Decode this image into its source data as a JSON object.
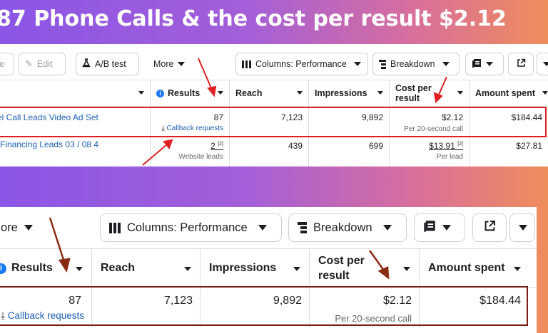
{
  "headline": "87 Phone Calls & the cost per result $2.12",
  "top_toolbar": {
    "partial_left": "e",
    "edit_label": "Edit",
    "ab_test_label": "A/B test",
    "more_label": "More",
    "columns_label": "Columns: Performance",
    "breakdown_label": "Breakdown"
  },
  "table": {
    "headers": [
      "Results",
      "Reach",
      "Impressions",
      "Cost per result",
      "Amount spent"
    ],
    "rows": [
      {
        "name": "el Call Leads Video Ad Set",
        "results": "87",
        "results_sub": "Callback requests",
        "reach": "7,123",
        "impressions": "9,892",
        "cost": "$2.12",
        "cost_sub": "Per 20-second call",
        "spent": "$184.44"
      },
      {
        "name": "Financing Leads 03 / 08 4",
        "results": "2",
        "results_mark": "[2]",
        "results_sub": "Website leads",
        "reach": "439",
        "impressions": "699",
        "cost": "$13.91",
        "cost_mark": "[2]",
        "cost_sub": "Per lead",
        "spent": "$27.81"
      }
    ]
  },
  "bottom_zoom": {
    "more_label": "ore",
    "columns_label": "Columns: Performance",
    "breakdown_label": "Breakdown",
    "headers": [
      "Results",
      "Reach",
      "Impressions",
      "Cost per",
      "result",
      "Amount spent"
    ],
    "row": {
      "results": "87",
      "results_sub": "Callback requests",
      "reach": "7,123",
      "impressions": "9,892",
      "cost": "$2.12",
      "cost_sub": "Per 20-second call",
      "spent": "$184.44"
    }
  },
  "colors": {
    "highlight_top": "#e02020",
    "highlight_bottom": "#7a1d10",
    "arrow_top": "#e02020",
    "arrow_bottom": "#8b2a12",
    "link": "#1a5fb4"
  }
}
